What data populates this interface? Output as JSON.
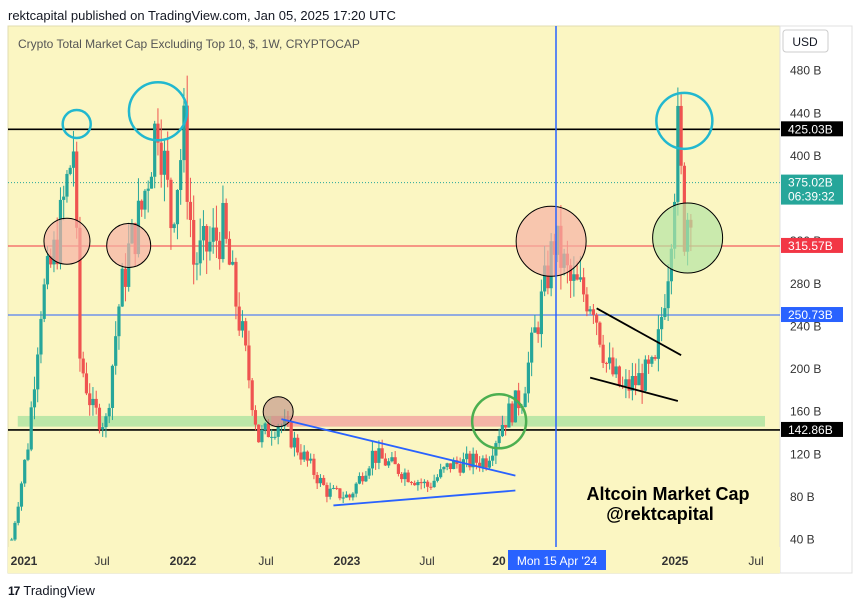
{
  "header": {
    "published": "rektcapital published on TradingView.com, Jan 05, 2025 17:20 UTC"
  },
  "footer": {
    "logo_mark": "17",
    "brand": "TradingView"
  },
  "chart_data": {
    "type": "candlestick",
    "title": "Crypto Total Market Cap Excluding Top 10, $, 1W, CRYPTOCAP",
    "annotation_title": "Altcoin Market Cap",
    "annotation_author": "@rektcapital",
    "currency_button": "USD",
    "x_ticks": [
      "2021",
      "Jul",
      "2022",
      "Jul",
      "2023",
      "Jul",
      "20",
      "2025",
      "Jul"
    ],
    "y_ticks": [
      "480 B",
      "440 B",
      "400 B",
      "360 B",
      "320 B",
      "280 B",
      "240 B",
      "200 B",
      "160 B",
      "120 B",
      "80 B",
      "40 B"
    ],
    "y_range": [
      33,
      522
    ],
    "y_scale": "linear",
    "price_labels": [
      {
        "value": 425.03,
        "text": "425.03B",
        "color": "#000000"
      },
      {
        "value": 375.02,
        "text": "375.02B",
        "countdown": "06:39:32",
        "color": "#26a69a"
      },
      {
        "value": 315.57,
        "text": "315.57B",
        "color": "#f23645"
      },
      {
        "value": 250.73,
        "text": "250.73B",
        "color": "#2962ff"
      },
      {
        "value": 142.86,
        "text": "142.86B",
        "color": "#000000"
      }
    ],
    "crosshair_label": "Mon 15 Apr '24",
    "zones": [
      {
        "kind": "support",
        "color": "#b5e5a4",
        "range": [
          146,
          156
        ]
      },
      {
        "kind": "resistance",
        "color": "#f7b2a5",
        "range": [
          146,
          156
        ]
      }
    ],
    "candle_colors": {
      "up": "#26a69a",
      "down": "#ef5350"
    },
    "ohlc_path": [
      [
        "2020-12-28",
        40
      ],
      [
        "2021-02-01",
        130
      ],
      [
        "2021-03-01",
        260
      ],
      [
        "2021-04-05",
        320
      ],
      [
        "2021-05-10",
        410
      ],
      [
        "2021-05-24",
        210
      ],
      [
        "2021-06-21",
        160
      ],
      [
        "2021-07-19",
        150
      ],
      [
        "2021-08-16",
        260
      ],
      [
        "2021-09-06",
        310
      ],
      [
        "2021-10-04",
        350
      ],
      [
        "2021-11-08",
        440
      ],
      [
        "2021-12-06",
        340
      ],
      [
        "2022-01-03",
        420
      ],
      [
        "2022-01-24",
        300
      ],
      [
        "2022-03-28",
        330
      ],
      [
        "2022-05-09",
        230
      ],
      [
        "2022-06-13",
        135
      ],
      [
        "2022-07-25",
        150
      ],
      [
        "2022-08-15",
        140
      ],
      [
        "2022-11-07",
        85
      ],
      [
        "2022-12-26",
        80
      ],
      [
        "2023-02-13",
        120
      ],
      [
        "2023-06-12",
        90
      ],
      [
        "2023-07-31",
        110
      ],
      [
        "2023-10-16",
        115
      ],
      [
        "2023-11-20",
        150
      ],
      [
        "2024-01-01",
        175
      ],
      [
        "2024-03-11",
        320
      ],
      [
        "2024-04-15",
        280
      ],
      [
        "2024-06-03",
        265
      ],
      [
        "2024-07-01",
        205
      ],
      [
        "2024-08-05",
        180
      ],
      [
        "2024-10-14",
        200
      ],
      [
        "2024-11-11",
        300
      ],
      [
        "2024-12-02",
        420
      ],
      [
        "2024-12-16",
        330
      ],
      [
        "2025-01-05",
        375
      ]
    ]
  }
}
